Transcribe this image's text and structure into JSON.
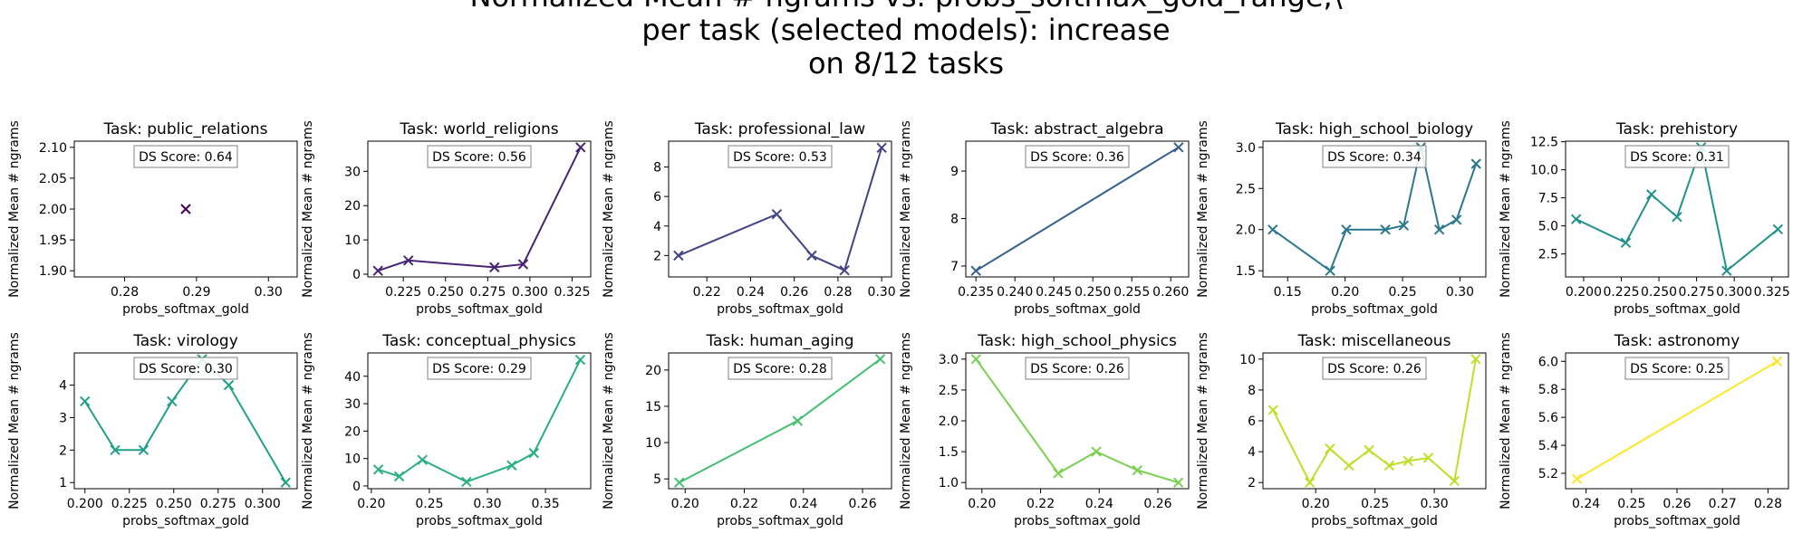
{
  "figure": {
    "title_lines": [
      "Normalized Mean # ngrams vs. probs_softmax_gold_range,\\",
      "per task (selected models): increase",
      "on 8/12 tasks"
    ]
  },
  "chart_data": [
    {
      "type": "line",
      "title": "Task: public_relations",
      "xlabel": "probs_softmax_gold",
      "ylabel": "Normalized Mean # ngrams",
      "annotation": "DS Score: 0.64",
      "color": "#440154",
      "marker": "x",
      "grid": false,
      "xlim": [
        0.273,
        0.304
      ],
      "ylim": [
        1.89,
        2.11
      ],
      "xticks": [
        0.28,
        0.29,
        0.3
      ],
      "xtick_labels": [
        "0.28",
        "0.29",
        "0.30"
      ],
      "yticks": [
        1.9,
        1.95,
        2.0,
        2.05,
        2.1
      ],
      "ytick_labels": [
        "1.90",
        "1.95",
        "2.00",
        "2.05",
        "2.10"
      ],
      "x": [
        0.2885
      ],
      "y": [
        2.0
      ]
    },
    {
      "type": "line",
      "title": "Task: world_religions",
      "xlabel": "probs_softmax_gold",
      "ylabel": "Normalized Mean # ngrams",
      "annotation": "DS Score: 0.56",
      "color": "#482475",
      "marker": "x",
      "grid": false,
      "xlim": [
        0.204,
        0.336
      ],
      "ylim": [
        -0.8,
        38.8
      ],
      "xticks": [
        0.225,
        0.25,
        0.275,
        0.3,
        0.325
      ],
      "xtick_labels": [
        "0.225",
        "0.250",
        "0.275",
        "0.300",
        "0.325"
      ],
      "yticks": [
        0,
        10,
        20,
        30
      ],
      "ytick_labels": [
        "0",
        "10",
        "20",
        "30"
      ],
      "x": [
        0.21,
        0.228,
        0.279,
        0.296,
        0.33
      ],
      "y": [
        1.0,
        4.0,
        2.0,
        2.9,
        37.0
      ]
    },
    {
      "type": "line",
      "title": "Task: professional_law",
      "xlabel": "probs_softmax_gold",
      "ylabel": "Normalized Mean # ngrams",
      "annotation": "DS Score: 0.53",
      "color": "#414487",
      "marker": "x",
      "grid": false,
      "xlim": [
        0.2025,
        0.3045
      ],
      "ylim": [
        0.55,
        9.75
      ],
      "xticks": [
        0.22,
        0.24,
        0.26,
        0.28,
        0.3
      ],
      "xtick_labels": [
        "0.22",
        "0.24",
        "0.26",
        "0.28",
        "0.30"
      ],
      "yticks": [
        2,
        4,
        6,
        8
      ],
      "ytick_labels": [
        "2",
        "4",
        "6",
        "8"
      ],
      "x": [
        0.207,
        0.252,
        0.268,
        0.283,
        0.3
      ],
      "y": [
        2.0,
        4.8,
        2.0,
        1.0,
        9.3
      ]
    },
    {
      "type": "line",
      "title": "Task: abstract_algebra",
      "xlabel": "probs_softmax_gold",
      "ylabel": "Normalized Mean # ngrams",
      "annotation": "DS Score: 0.36",
      "color": "#355F8D",
      "marker": "x",
      "grid": false,
      "xlim": [
        0.2337,
        0.2623
      ],
      "ylim": [
        6.77,
        9.63
      ],
      "xticks": [
        0.235,
        0.24,
        0.245,
        0.25,
        0.255,
        0.26
      ],
      "xtick_labels": [
        "0.235",
        "0.240",
        "0.245",
        "0.250",
        "0.255",
        "0.260"
      ],
      "yticks": [
        7,
        8,
        9
      ],
      "ytick_labels": [
        "7",
        "8",
        "9"
      ],
      "x": [
        0.235,
        0.261
      ],
      "y": [
        6.9,
        9.5
      ]
    },
    {
      "type": "line",
      "title": "Task: high_school_biology",
      "xlabel": "probs_softmax_gold",
      "ylabel": "Normalized Mean # ngrams",
      "annotation": "DS Score: 0.34",
      "color": "#2A788E",
      "marker": "x",
      "grid": false,
      "xlim": [
        0.1285,
        0.3225
      ],
      "ylim": [
        1.425,
        3.075
      ],
      "xticks": [
        0.15,
        0.2,
        0.25,
        0.3
      ],
      "xtick_labels": [
        "0.15",
        "0.20",
        "0.25",
        "0.30"
      ],
      "yticks": [
        1.5,
        2.0,
        2.5,
        3.0
      ],
      "ytick_labels": [
        "1.5",
        "2.0",
        "2.5",
        "3.0"
      ],
      "x": [
        0.137,
        0.187,
        0.201,
        0.235,
        0.251,
        0.266,
        0.282,
        0.297,
        0.314
      ],
      "y": [
        2.0,
        1.5,
        2.0,
        2.0,
        2.05,
        3.0,
        2.0,
        2.12,
        2.8
      ]
    },
    {
      "type": "line",
      "title": "Task: prehistory",
      "xlabel": "probs_softmax_gold",
      "ylabel": "Normalized Mean # ngrams",
      "annotation": "DS Score: 0.31",
      "color": "#21918C",
      "marker": "x",
      "grid": false,
      "xlim": [
        0.188,
        0.336
      ],
      "ylim": [
        0.45,
        12.55
      ],
      "xticks": [
        0.2,
        0.225,
        0.25,
        0.275,
        0.3,
        0.325
      ],
      "xtick_labels": [
        "0.200",
        "0.225",
        "0.250",
        "0.275",
        "0.300",
        "0.325"
      ],
      "yticks": [
        2.5,
        5.0,
        7.5,
        10.0,
        12.5
      ],
      "ytick_labels": [
        "2.5",
        "5.0",
        "7.5",
        "10.0",
        "12.5"
      ],
      "x": [
        0.195,
        0.228,
        0.245,
        0.262,
        0.278,
        0.295,
        0.329
      ],
      "y": [
        5.6,
        3.5,
        7.8,
        5.8,
        12.0,
        1.0,
        4.7
      ]
    },
    {
      "type": "line",
      "title": "Task: virology",
      "xlabel": "probs_softmax_gold",
      "ylabel": "Normalized Mean # ngrams",
      "annotation": "DS Score: 0.30",
      "color": "#1FA187",
      "marker": "x",
      "grid": false,
      "xlim": [
        0.194,
        0.3195
      ],
      "ylim": [
        0.81,
        4.99
      ],
      "xticks": [
        0.2,
        0.225,
        0.25,
        0.275,
        0.3
      ],
      "xtick_labels": [
        "0.200",
        "0.225",
        "0.250",
        "0.275",
        "0.300"
      ],
      "yticks": [
        1,
        2,
        3,
        4
      ],
      "ytick_labels": [
        "1",
        "2",
        "3",
        "4"
      ],
      "x": [
        0.2,
        0.217,
        0.233,
        0.249,
        0.266,
        0.281,
        0.313
      ],
      "y": [
        3.5,
        2.0,
        2.0,
        3.5,
        4.8,
        4.0,
        1.0
      ]
    },
    {
      "type": "line",
      "title": "Task: conceptual_physics",
      "xlabel": "probs_softmax_gold",
      "ylabel": "Normalized Mean # ngrams",
      "annotation": "DS Score: 0.29",
      "color": "#2AB07F",
      "marker": "x",
      "grid": false,
      "xlim": [
        0.197,
        0.389
      ],
      "ylim": [
        -1.0,
        48.5
      ],
      "xticks": [
        0.2,
        0.25,
        0.3,
        0.35
      ],
      "xtick_labels": [
        "0.20",
        "0.25",
        "0.30",
        "0.35"
      ],
      "yticks": [
        0,
        10,
        20,
        30,
        40
      ],
      "ytick_labels": [
        "0",
        "10",
        "20",
        "30",
        "40"
      ],
      "x": [
        0.206,
        0.224,
        0.244,
        0.282,
        0.321,
        0.34,
        0.38
      ],
      "y": [
        6.0,
        3.5,
        9.5,
        1.5,
        7.5,
        12.0,
        46.0
      ]
    },
    {
      "type": "line",
      "title": "Task: human_aging",
      "xlabel": "probs_softmax_gold",
      "ylabel": "Normalized Mean # ngrams",
      "annotation": "DS Score: 0.28",
      "color": "#44BF70",
      "marker": "x",
      "grid": false,
      "xlim": [
        0.1944,
        0.2698
      ],
      "ylim": [
        3.65,
        22.35
      ],
      "xticks": [
        0.2,
        0.22,
        0.24,
        0.26
      ],
      "xtick_labels": [
        "0.20",
        "0.22",
        "0.24",
        "0.26"
      ],
      "yticks": [
        5,
        10,
        15,
        20
      ],
      "ytick_labels": [
        "5",
        "10",
        "15",
        "20"
      ],
      "x": [
        0.198,
        0.238,
        0.266
      ],
      "y": [
        4.5,
        13.0,
        21.5
      ]
    },
    {
      "type": "line",
      "title": "Task: high_school_physics",
      "xlabel": "probs_softmax_gold",
      "ylabel": "Normalized Mean # ngrams",
      "annotation": "DS Score: 0.26",
      "color": "#7AD151",
      "marker": "x",
      "grid": false,
      "xlim": [
        0.1945,
        0.2705
      ],
      "ylim": [
        0.9,
        3.1
      ],
      "xticks": [
        0.2,
        0.22,
        0.24,
        0.26
      ],
      "xtick_labels": [
        "0.20",
        "0.22",
        "0.24",
        "0.26"
      ],
      "yticks": [
        1.0,
        1.5,
        2.0,
        2.5,
        3.0
      ],
      "ytick_labels": [
        "1.0",
        "1.5",
        "2.0",
        "2.5",
        "3.0"
      ],
      "x": [
        0.198,
        0.226,
        0.239,
        0.253,
        0.267
      ],
      "y": [
        3.0,
        1.15,
        1.5,
        1.2,
        1.0
      ]
    },
    {
      "type": "line",
      "title": "Task: miscellaneous",
      "xlabel": "probs_softmax_gold",
      "ylabel": "Normalized Mean # ngrams",
      "annotation": "DS Score: 0.26",
      "color": "#BDDF26",
      "marker": "x",
      "grid": false,
      "xlim": [
        0.1555,
        0.3435
      ],
      "ylim": [
        1.6,
        10.4
      ],
      "xticks": [
        0.2,
        0.25,
        0.3
      ],
      "xtick_labels": [
        "0.20",
        "0.25",
        "0.30"
      ],
      "yticks": [
        2,
        4,
        6,
        8,
        10
      ],
      "ytick_labels": [
        "2",
        "4",
        "6",
        "8",
        "10"
      ],
      "x": [
        0.164,
        0.195,
        0.212,
        0.228,
        0.245,
        0.262,
        0.278,
        0.295,
        0.317,
        0.335
      ],
      "y": [
        6.7,
        2.0,
        4.2,
        3.1,
        4.1,
        3.1,
        3.4,
        3.6,
        2.1,
        10.0
      ]
    },
    {
      "type": "line",
      "title": "Task: astronomy",
      "xlabel": "probs_softmax_gold",
      "ylabel": "Normalized Mean # ngrams",
      "annotation": "DS Score: 0.25",
      "color": "#FDE725",
      "marker": "x",
      "grid": false,
      "xlim": [
        0.2355,
        0.2845
      ],
      "ylim": [
        5.09,
        6.06
      ],
      "xticks": [
        0.24,
        0.25,
        0.26,
        0.27,
        0.28
      ],
      "xtick_labels": [
        "0.24",
        "0.25",
        "0.26",
        "0.27",
        "0.28"
      ],
      "yticks": [
        5.2,
        5.4,
        5.6,
        5.8,
        6.0
      ],
      "ytick_labels": [
        "5.2",
        "5.4",
        "5.6",
        "5.8",
        "6.0"
      ],
      "x": [
        0.238,
        0.282
      ],
      "y": [
        5.16,
        6.0
      ]
    }
  ]
}
